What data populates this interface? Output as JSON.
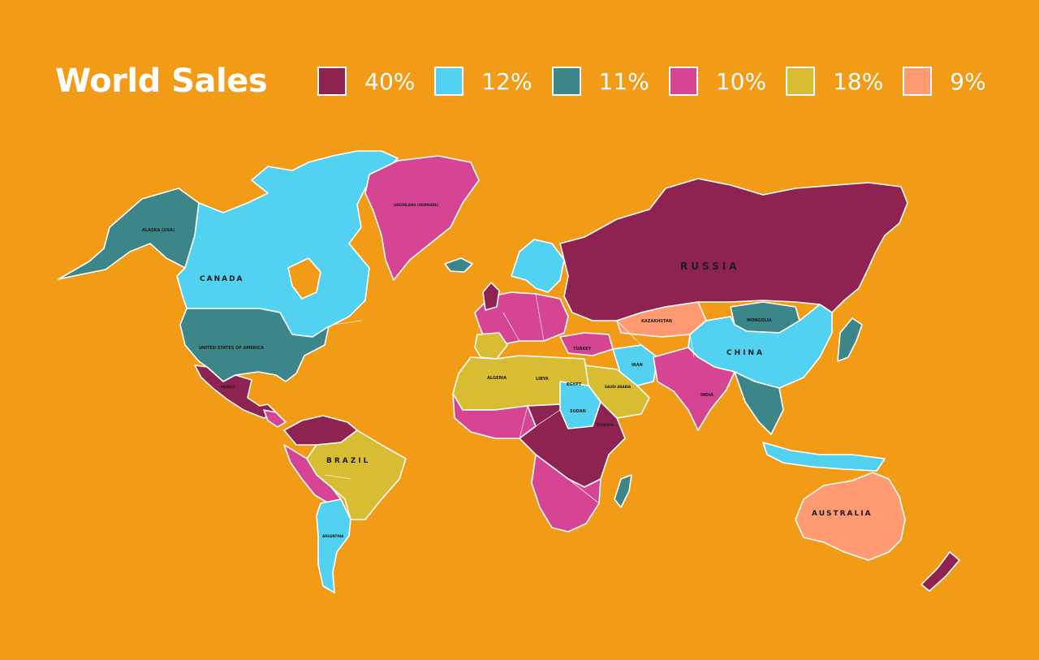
{
  "title": "World Sales",
  "legend": [
    {
      "label": "40%",
      "color": "#8E2352"
    },
    {
      "label": "12%",
      "color": "#52D1F0"
    },
    {
      "label": "11%",
      "color": "#3C8589"
    },
    {
      "label": "10%",
      "color": "#D64594"
    },
    {
      "label": "18%",
      "color": "#D8BD33"
    },
    {
      "label": "9%",
      "color": "#FF9A72"
    }
  ],
  "map_labels": {
    "alaska": "ALASKA (USA)",
    "canada": "CANADA",
    "usa": "UNITED STATES OF AMERICA",
    "mexico": "MEXICO",
    "greenland": "GREENLAND (DENMARK)",
    "russia": "RUSSIA",
    "kazakhstan": "KAZAKHSTAN",
    "mongolia": "MONGOLIA",
    "china": "CHINA",
    "india": "INDIA",
    "iran": "IRAN",
    "turkey": "TURKEY",
    "saudi": "SAUDI ARABIA",
    "algeria": "ALGERIA",
    "libya": "LIBYA",
    "egypt": "EGYPT",
    "sudan": "SUDAN",
    "ethiopia": "ETHIOPIA",
    "brazil": "BRAZIL",
    "argentina": "ARGENTINA",
    "australia": "AUSTRALIA"
  }
}
